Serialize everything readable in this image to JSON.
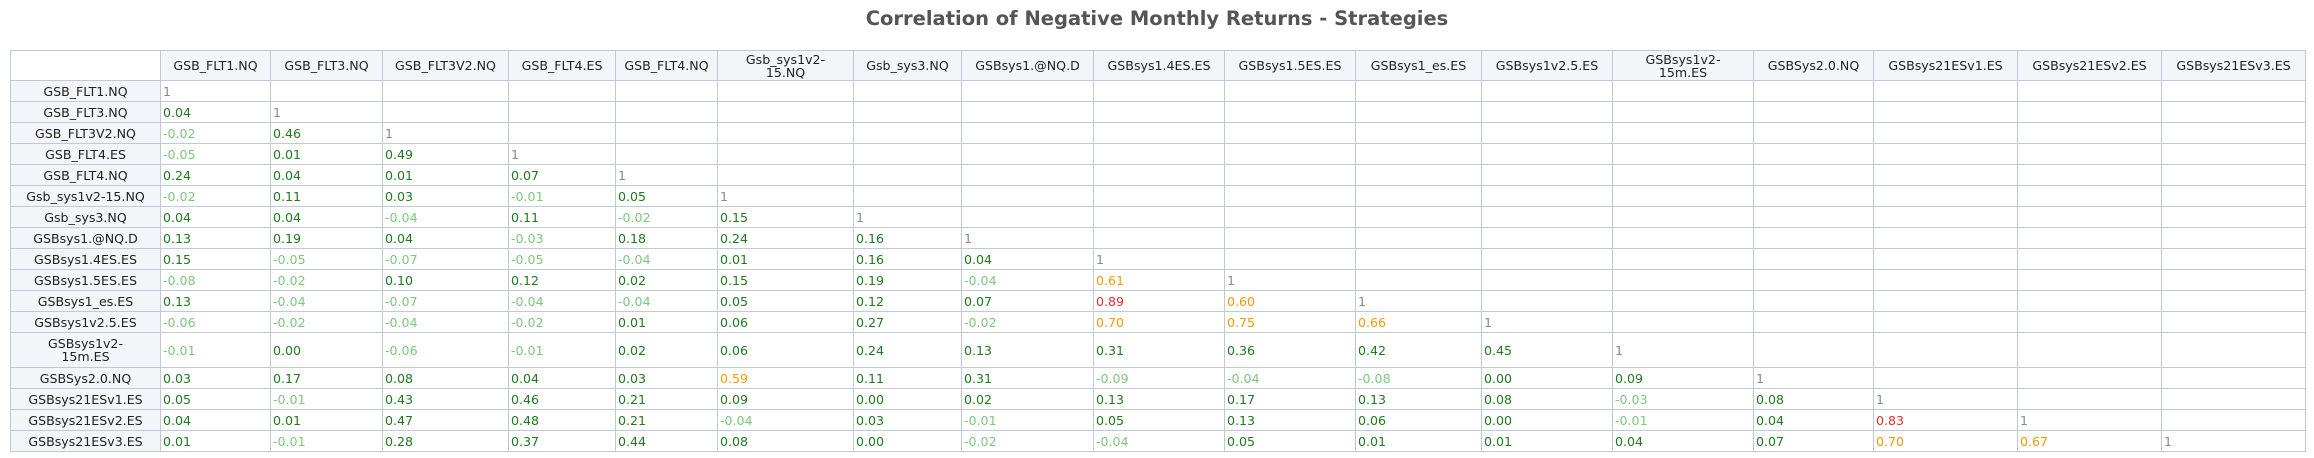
{
  "title": "Correlation of Negative Monthly Returns - Strategies",
  "chart_data": {
    "type": "table",
    "title": "Correlation of Negative Monthly Returns - Strategies",
    "columns": [
      "GSB_FLT1.NQ",
      "GSB_FLT3.NQ",
      "GSB_FLT3V2.NQ",
      "GSB_FLT4.ES",
      "GSB_FLT4.NQ",
      "Gsb_sys1v2-15.NQ",
      "Gsb_sys3.NQ",
      "GSBsys1.@NQ.D",
      "GSBsys1.4ES.ES",
      "GSBsys1.5ES.ES",
      "GSBsys1_es.ES",
      "GSBsys1v2.5.ES",
      "GSBsys1v2-15m.ES",
      "GSBSys2.0.NQ",
      "GSBsys21ESv1.ES",
      "GSBsys21ESv2.ES",
      "GSBsys21ESv3.ES"
    ],
    "rows": [
      "GSB_FLT1.NQ",
      "GSB_FLT3.NQ",
      "GSB_FLT3V2.NQ",
      "GSB_FLT4.ES",
      "GSB_FLT4.NQ",
      "Gsb_sys1v2-15.NQ",
      "Gsb_sys3.NQ",
      "GSBsys1.@NQ.D",
      "GSBsys1.4ES.ES",
      "GSBsys1.5ES.ES",
      "GSBsys1_es.ES",
      "GSBsys1v2.5.ES",
      "GSBsys1v2-15m.ES",
      "GSBSys2.0.NQ",
      "GSBsys21ESv1.ES",
      "GSBsys21ESv2.ES",
      "GSBsys21ESv3.ES"
    ],
    "values": [
      [
        "1"
      ],
      [
        "0.04",
        "1"
      ],
      [
        "-0.02",
        "0.46",
        "1"
      ],
      [
        "-0.05",
        "0.01",
        "0.49",
        "1"
      ],
      [
        "0.24",
        "0.04",
        "0.01",
        "0.07",
        "1"
      ],
      [
        "-0.02",
        "0.11",
        "0.03",
        "-0.01",
        "0.05",
        "1"
      ],
      [
        "0.04",
        "0.04",
        "-0.04",
        "0.11",
        "-0.02",
        "0.15",
        "1"
      ],
      [
        "0.13",
        "0.19",
        "0.04",
        "-0.03",
        "0.18",
        "0.24",
        "0.16",
        "1"
      ],
      [
        "0.15",
        "-0.05",
        "-0.07",
        "-0.05",
        "-0.04",
        "0.01",
        "0.16",
        "0.04",
        "1"
      ],
      [
        "-0.08",
        "-0.02",
        "0.10",
        "0.12",
        "0.02",
        "0.15",
        "0.19",
        "-0.04",
        "0.61",
        "1"
      ],
      [
        "0.13",
        "-0.04",
        "-0.07",
        "-0.04",
        "-0.04",
        "0.05",
        "0.12",
        "0.07",
        "0.89",
        "0.60",
        "1"
      ],
      [
        "-0.06",
        "-0.02",
        "-0.04",
        "-0.02",
        "0.01",
        "0.06",
        "0.27",
        "-0.02",
        "0.70",
        "0.75",
        "0.66",
        "1"
      ],
      [
        "-0.01",
        "0.00",
        "-0.06",
        "-0.01",
        "0.02",
        "0.06",
        "0.24",
        "0.13",
        "0.31",
        "0.36",
        "0.42",
        "0.45",
        "1"
      ],
      [
        "0.03",
        "0.17",
        "0.08",
        "0.04",
        "0.03",
        "0.59",
        "0.11",
        "0.31",
        "-0.09",
        "-0.04",
        "-0.08",
        "0.00",
        "0.09",
        "1"
      ],
      [
        "0.05",
        "-0.01",
        "0.43",
        "0.46",
        "0.21",
        "0.09",
        "0.00",
        "0.02",
        "0.13",
        "0.17",
        "0.13",
        "0.08",
        "-0.03",
        "0.08",
        "1"
      ],
      [
        "0.04",
        "0.01",
        "0.47",
        "0.48",
        "0.21",
        "-0.04",
        "0.03",
        "-0.01",
        "0.05",
        "0.13",
        "0.06",
        "0.00",
        "-0.01",
        "0.04",
        "0.83",
        "1"
      ],
      [
        "0.01",
        "-0.01",
        "0.28",
        "0.37",
        "0.44",
        "0.08",
        "0.00",
        "-0.02",
        "-0.04",
        "0.05",
        "0.01",
        "0.01",
        "0.04",
        "0.07",
        "0.70",
        "0.67",
        "1"
      ]
    ],
    "colors": {
      "diagonal": "#8a8a8a",
      "negative": "#7ec87e",
      "low_positive": "#1f7a1f",
      "medium": "#f29a00",
      "high": "#e03030"
    }
  }
}
